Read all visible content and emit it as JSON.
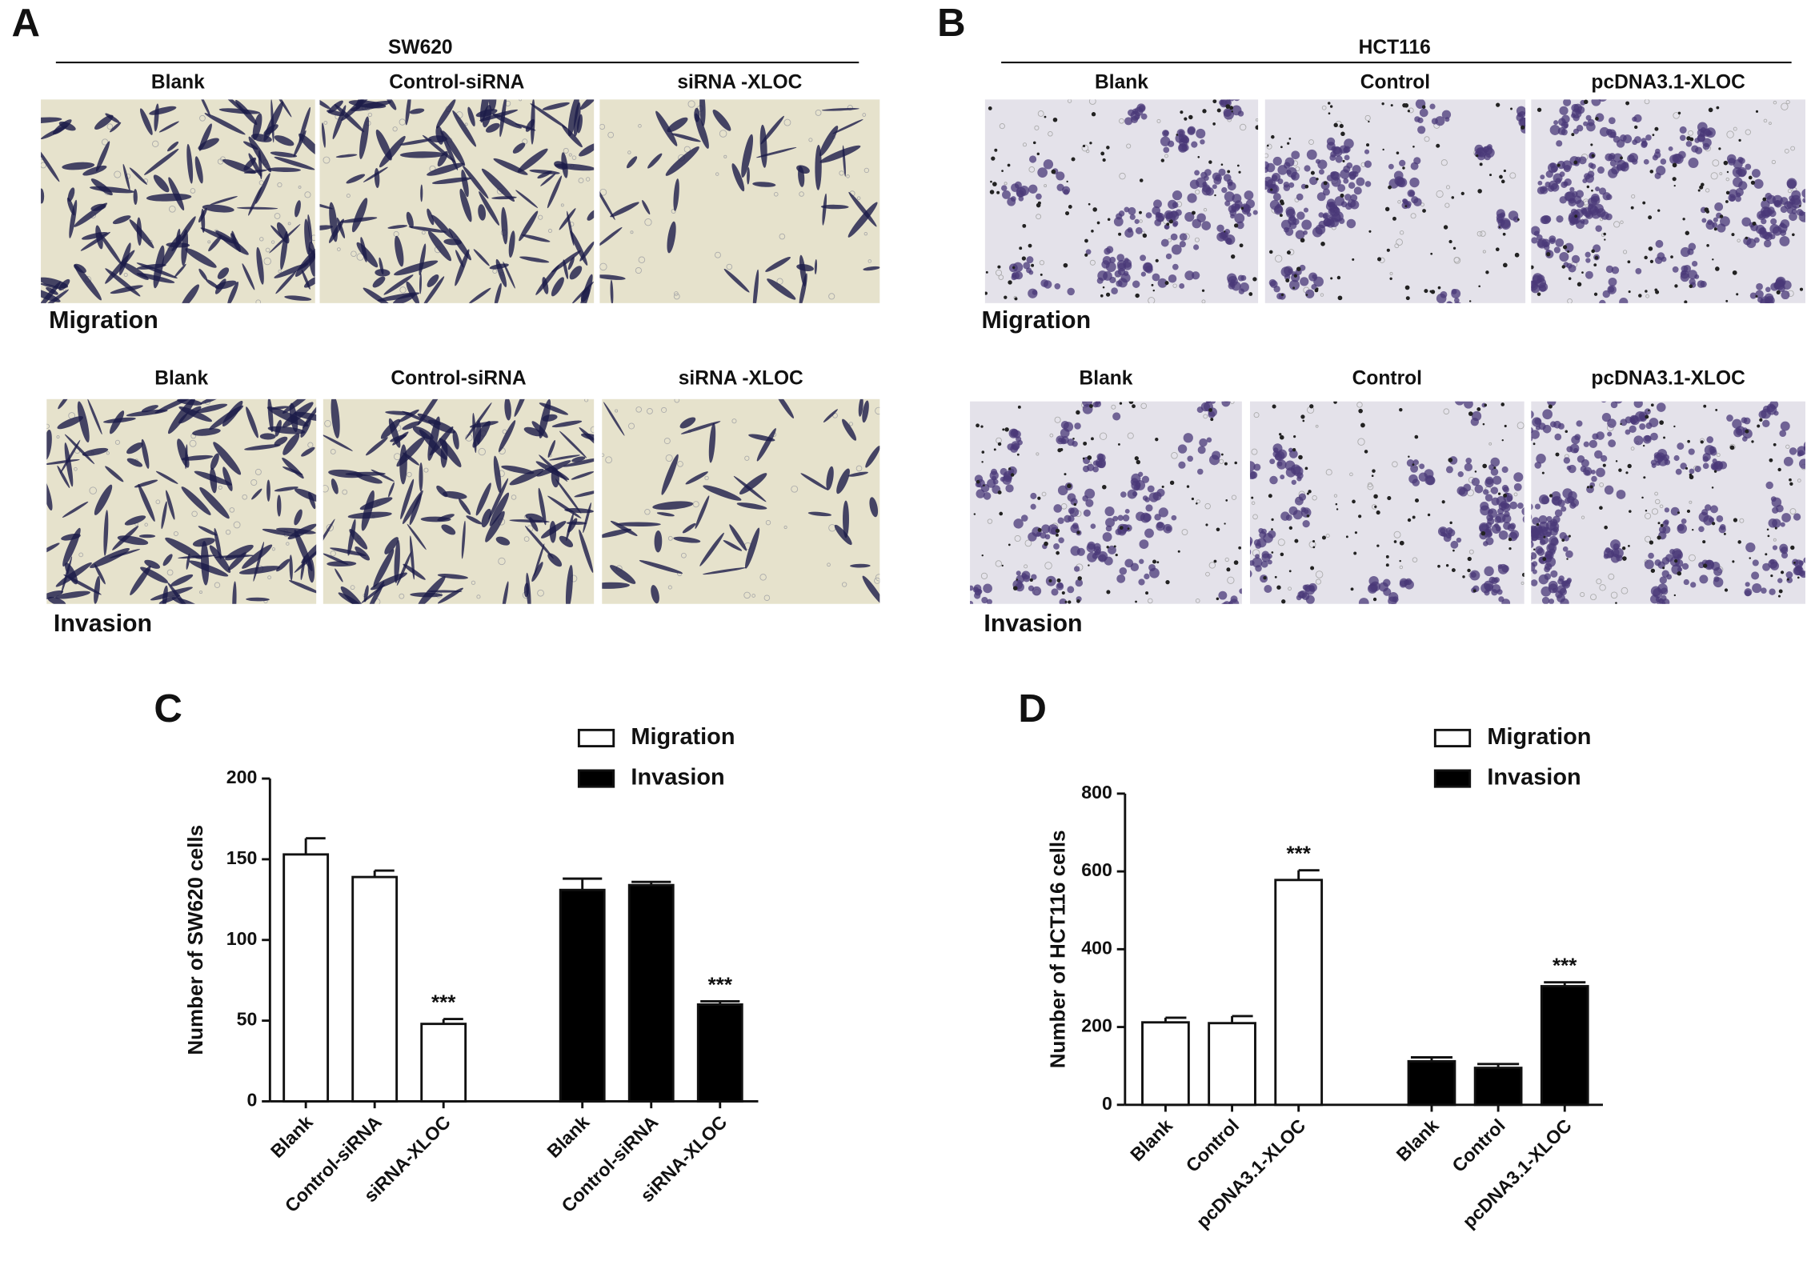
{
  "panels": [
    {
      "label": "A",
      "cell_line": "SW620",
      "rows": [
        {
          "columns": [
            "Blank",
            "Control-siRNA",
            "siRNA -XLOC"
          ],
          "label": "Migration"
        },
        {
          "columns": [
            "Blank",
            "Control-siRNA",
            "siRNA -XLOC"
          ],
          "label": "Invasion"
        }
      ]
    },
    {
      "label": "B",
      "cell_line": "HCT116",
      "rows": [
        {
          "columns": [
            "Blank",
            "Control",
            "pcDNA3.1-XLOC"
          ],
          "label": "Migration"
        },
        {
          "columns": [
            "Blank",
            "Control",
            "pcDNA3.1-XLOC"
          ],
          "label": "Invasion"
        }
      ]
    }
  ],
  "chart_data": [
    {
      "type": "bar",
      "panel_label": "C",
      "ylabel": "Number of SW620 cells",
      "categories": [
        "Blank",
        "Control-siRNA",
        "siRNA-XLOC"
      ],
      "series": [
        {
          "name": "Migration",
          "color": "#ffffff",
          "values": [
            153,
            139,
            48
          ],
          "errors": [
            10,
            4,
            3
          ]
        },
        {
          "name": "Invasion",
          "color": "#000000",
          "values": [
            131,
            134,
            60
          ],
          "errors": [
            7,
            2,
            2
          ]
        }
      ],
      "annotations": [
        {
          "series": 0,
          "category": 2,
          "text": "***"
        },
        {
          "series": 1,
          "category": 2,
          "text": "***"
        }
      ],
      "ylim": [
        0,
        200
      ],
      "yticks": [
        0,
        50,
        100,
        150,
        200
      ],
      "legend": "upper right"
    },
    {
      "type": "bar",
      "panel_label": "D",
      "ylabel": "Number of HCT116 cells",
      "categories": [
        "Blank",
        "Control",
        "pcDNA3.1-XLOC"
      ],
      "series": [
        {
          "name": "Migration",
          "color": "#ffffff",
          "values": [
            212,
            210,
            578
          ],
          "errors": [
            12,
            18,
            25
          ]
        },
        {
          "name": "Invasion",
          "color": "#000000",
          "values": [
            112,
            95,
            305
          ],
          "errors": [
            10,
            10,
            10
          ]
        }
      ],
      "annotations": [
        {
          "series": 0,
          "category": 2,
          "text": "***"
        },
        {
          "series": 1,
          "category": 2,
          "text": "***"
        }
      ],
      "ylim": [
        0,
        800
      ],
      "yticks": [
        0,
        200,
        400,
        600,
        800
      ],
      "legend": "upper right"
    }
  ]
}
